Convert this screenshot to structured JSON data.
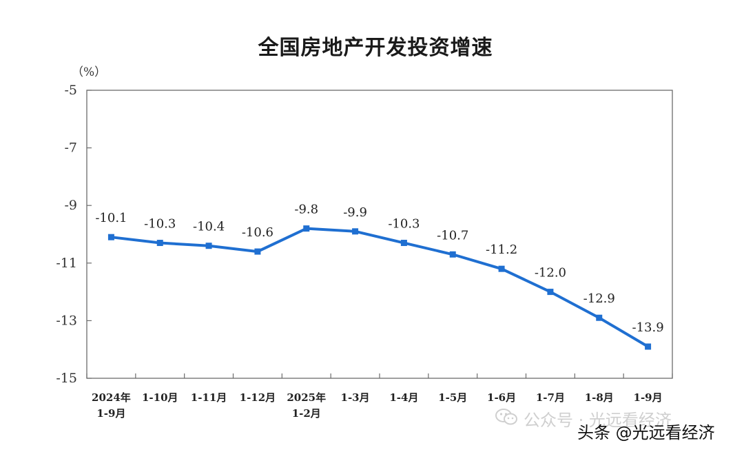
{
  "chart_data": {
    "type": "line",
    "title": "全国房地产开发投资增速",
    "unit": "（%）",
    "categories": [
      [
        "2024年",
        "1-9月"
      ],
      [
        "1-10月"
      ],
      [
        "1-11月"
      ],
      [
        "1-12月"
      ],
      [
        "2025年",
        "1-2月"
      ],
      [
        "1-3月"
      ],
      [
        "1-4月"
      ],
      [
        "1-5月"
      ],
      [
        "1-6月"
      ],
      [
        "1-7月"
      ],
      [
        "1-8月"
      ],
      [
        "1-9月"
      ]
    ],
    "series": [
      {
        "values": [
          -10.1,
          -10.3,
          -10.4,
          -10.6,
          -9.8,
          -9.9,
          -10.3,
          -10.7,
          -11.2,
          -12.0,
          -12.9,
          -13.9
        ],
        "labels": [
          "-10.1",
          "-10.3",
          "-10.4",
          "-10.6",
          "-9.8",
          "-9.9",
          "-10.3",
          "-10.7",
          "-11.2",
          "-12.0",
          "-12.9",
          "-13.9"
        ],
        "color": "#1f6fd1"
      }
    ],
    "yticks": [
      "-5",
      "-7",
      "-9",
      "-11",
      "-13",
      "-15"
    ],
    "ylim": [
      -15,
      -5
    ],
    "grid": false,
    "legend": "none"
  },
  "watermark": {
    "text": "公众号 · 光远看经济",
    "icon": "wechat-icon"
  },
  "source_tag": "头条 @光远看经济"
}
